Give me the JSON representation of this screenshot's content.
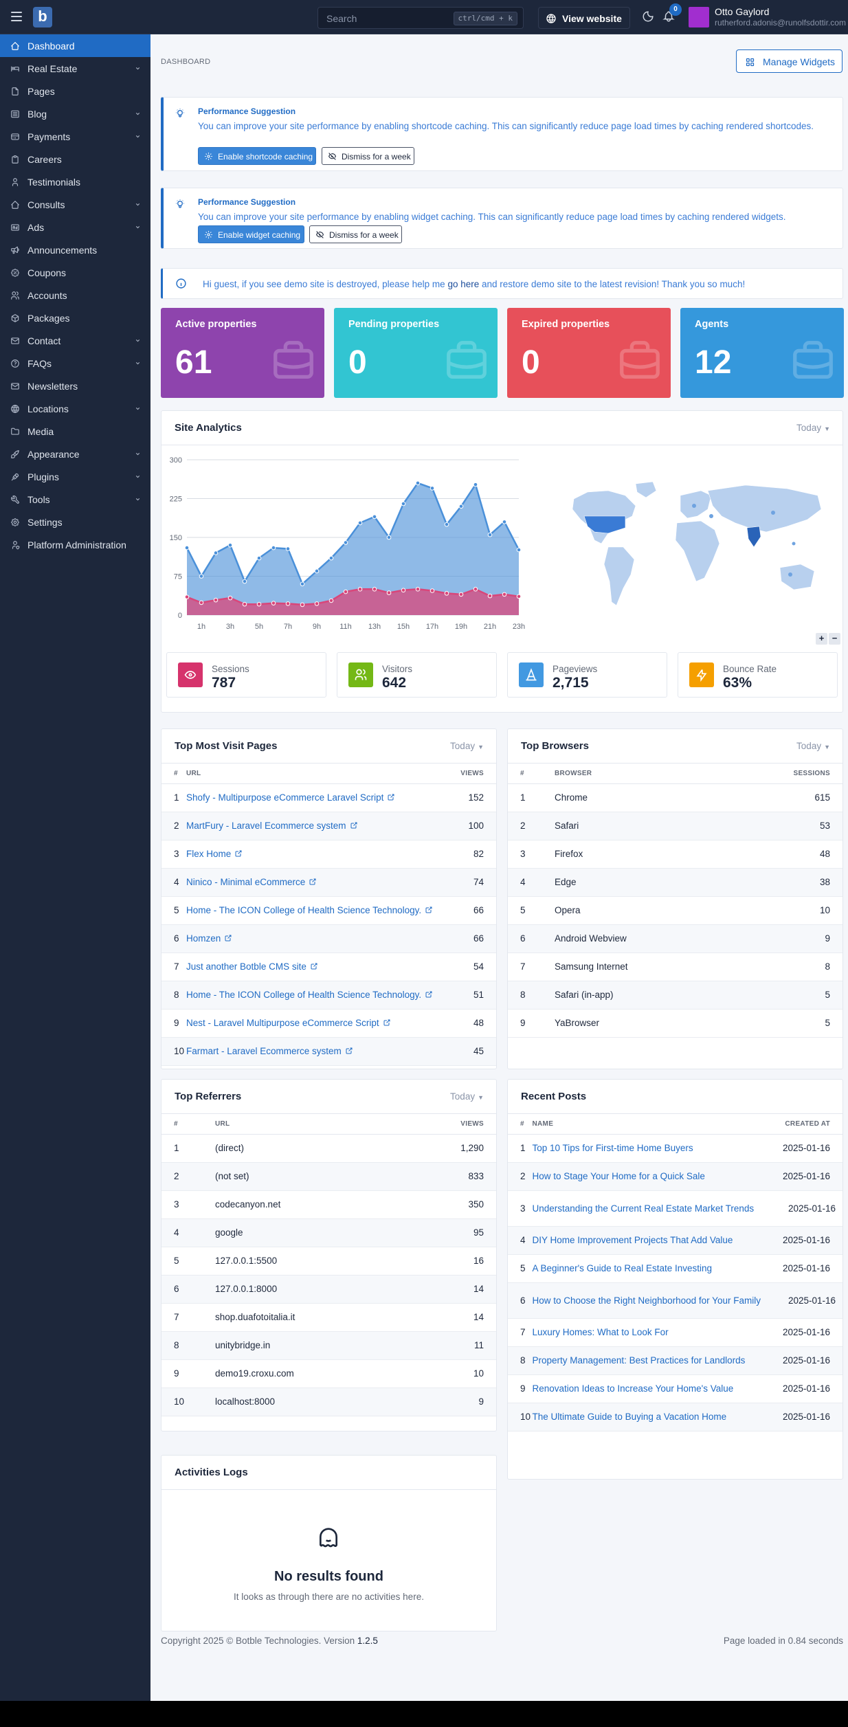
{
  "header": {
    "search_placeholder": "Search",
    "search_shortcut": "ctrl/cmd + k",
    "view_website": "View website",
    "notifications_count": "0",
    "user_name": "Otto Gaylord",
    "user_email": "rutherford.adonis@runolfsdottir.com"
  },
  "sidebar": {
    "items": [
      {
        "label": "Dashboard",
        "icon": "home-icon"
      },
      {
        "label": "Real Estate",
        "icon": "bed-icon"
      },
      {
        "label": "Pages",
        "icon": "file-icon"
      },
      {
        "label": "Blog",
        "icon": "article-icon"
      },
      {
        "label": "Payments",
        "icon": "credit-card-icon"
      },
      {
        "label": "Careers",
        "icon": "clipboard-icon"
      },
      {
        "label": "Testimonials",
        "icon": "user-icon"
      },
      {
        "label": "Consults",
        "icon": "home-icon"
      },
      {
        "label": "Ads",
        "icon": "ad-icon"
      },
      {
        "label": "Announcements",
        "icon": "speakerphone-icon"
      },
      {
        "label": "Coupons",
        "icon": "discount-icon"
      },
      {
        "label": "Accounts",
        "icon": "users-icon"
      },
      {
        "label": "Packages",
        "icon": "package-icon"
      },
      {
        "label": "Contact",
        "icon": "mail-icon"
      },
      {
        "label": "FAQs",
        "icon": "help-icon"
      },
      {
        "label": "Newsletters",
        "icon": "mail-icon"
      },
      {
        "label": "Locations",
        "icon": "world-icon"
      },
      {
        "label": "Media",
        "icon": "folder-icon"
      },
      {
        "label": "Appearance",
        "icon": "brush-icon"
      },
      {
        "label": "Plugins",
        "icon": "plug-icon"
      },
      {
        "label": "Tools",
        "icon": "tool-icon"
      },
      {
        "label": "Settings",
        "icon": "settings-icon"
      },
      {
        "label": "Platform Administration",
        "icon": "user-shield-icon"
      }
    ]
  },
  "page": {
    "breadcrumb": "DASHBOARD",
    "manage_widgets": "Manage Widgets"
  },
  "alerts": [
    {
      "title": "Performance Suggestion",
      "text": "You can improve your site performance by enabling shortcode caching. This can significantly reduce page load times by caching rendered shortcodes.",
      "primary": "Enable shortcode caching",
      "secondary": "Dismiss for a week"
    },
    {
      "title": "Performance Suggestion",
      "text": "You can improve your site performance by enabling widget caching. This can significantly reduce page load times by caching rendered widgets.",
      "primary": "Enable widget caching",
      "secondary": "Dismiss for a week"
    }
  ],
  "notice": {
    "before": "Hi guest, if you see demo site is destroyed, please help me ",
    "link": "go here",
    "after": " and restore demo site to the latest revision! Thank you so much!"
  },
  "stats": [
    {
      "title": "Active properties",
      "value": "61",
      "color": "#8e44ad"
    },
    {
      "title": "Pending properties",
      "value": "0",
      "color": "#32c5d2"
    },
    {
      "title": "Expired properties",
      "value": "0",
      "color": "#e7505a"
    },
    {
      "title": "Agents",
      "value": "12",
      "color": "#3598dc"
    }
  ],
  "analytics": {
    "title": "Site Analytics",
    "filter": "Today",
    "zoom_in": "+",
    "zoom_out": "−",
    "metrics": [
      {
        "label": "Sessions",
        "value": "787",
        "color": "#d6336c"
      },
      {
        "label": "Visitors",
        "value": "642",
        "color": "#74b816"
      },
      {
        "label": "Pageviews",
        "value": "2,715",
        "color": "#4299e1"
      },
      {
        "label": "Bounce Rate",
        "value": "63%",
        "color": "#f59f00"
      }
    ]
  },
  "chart_data": {
    "type": "area",
    "x": [
      "0h",
      "1h",
      "2h",
      "3h",
      "4h",
      "5h",
      "6h",
      "7h",
      "8h",
      "9h",
      "10h",
      "11h",
      "12h",
      "13h",
      "14h",
      "15h",
      "16h",
      "17h",
      "18h",
      "19h",
      "20h",
      "21h",
      "22h",
      "23h"
    ],
    "x_tick_labels": [
      "1h",
      "3h",
      "5h",
      "7h",
      "9h",
      "11h",
      "13h",
      "15h",
      "17h",
      "19h",
      "21h",
      "23h"
    ],
    "y_ticks": [
      "0",
      "75",
      "150",
      "225",
      "300"
    ],
    "ylim": [
      0,
      300
    ],
    "series": [
      {
        "color": "#4a90d9",
        "values": [
          130,
          75,
          120,
          135,
          65,
          110,
          130,
          128,
          60,
          85,
          110,
          140,
          178,
          190,
          150,
          215,
          255,
          245,
          175,
          210,
          252,
          155,
          180,
          126
        ]
      },
      {
        "color": "#d9467a",
        "values": [
          35,
          24,
          29,
          33,
          21,
          21,
          23,
          22,
          20,
          22,
          28,
          45,
          50,
          50,
          43,
          48,
          50,
          47,
          42,
          40,
          50,
          37,
          40,
          36
        ]
      }
    ]
  },
  "top_pages": {
    "title": "Top Most Visit Pages",
    "filter": "Today",
    "cols": [
      "#",
      "URL",
      "VIEWS"
    ],
    "rows": [
      [
        "1",
        "Shofy - Multipurpose eCommerce Laravel Script",
        "152"
      ],
      [
        "2",
        "MartFury - Laravel Ecommerce system",
        "100"
      ],
      [
        "3",
        "Flex Home",
        "82"
      ],
      [
        "4",
        "Ninico - Minimal eCommerce",
        "74"
      ],
      [
        "5",
        "Home - The ICON College of Health Science Technology.",
        "66"
      ],
      [
        "6",
        "Homzen",
        "66"
      ],
      [
        "7",
        "Just another Botble CMS site",
        "54"
      ],
      [
        "8",
        "Home - The ICON College of Health Science Technology.",
        "51"
      ],
      [
        "9",
        "Nest - Laravel Multipurpose eCommerce Script",
        "48"
      ],
      [
        "10",
        "Farmart - Laravel Ecommerce system",
        "45"
      ]
    ]
  },
  "top_browsers": {
    "title": "Top Browsers",
    "filter": "Today",
    "cols": [
      "#",
      "BROWSER",
      "SESSIONS"
    ],
    "rows": [
      [
        "1",
        "Chrome",
        "615"
      ],
      [
        "2",
        "Safari",
        "53"
      ],
      [
        "3",
        "Firefox",
        "48"
      ],
      [
        "4",
        "Edge",
        "38"
      ],
      [
        "5",
        "Opera",
        "10"
      ],
      [
        "6",
        "Android Webview",
        "9"
      ],
      [
        "7",
        "Samsung Internet",
        "8"
      ],
      [
        "8",
        "Safari (in-app)",
        "5"
      ],
      [
        "9",
        "YaBrowser",
        "5"
      ]
    ]
  },
  "top_referrers": {
    "title": "Top Referrers",
    "filter": "Today",
    "cols": [
      "#",
      "URL",
      "VIEWS"
    ],
    "rows": [
      [
        "1",
        "(direct)",
        "1,290"
      ],
      [
        "2",
        "(not set)",
        "833"
      ],
      [
        "3",
        "codecanyon.net",
        "350"
      ],
      [
        "4",
        "google",
        "95"
      ],
      [
        "5",
        "127.0.0.1:5500",
        "16"
      ],
      [
        "6",
        "127.0.0.1:8000",
        "14"
      ],
      [
        "7",
        "shop.duafotoitalia.it",
        "14"
      ],
      [
        "8",
        "unitybridge.in",
        "11"
      ],
      [
        "9",
        "demo19.croxu.com",
        "10"
      ],
      [
        "10",
        "localhost:8000",
        "9"
      ]
    ]
  },
  "recent_posts": {
    "title": "Recent Posts",
    "cols": [
      "#",
      "NAME",
      "CREATED AT"
    ],
    "rows": [
      [
        "1",
        "Top 10 Tips for First-time Home Buyers",
        "2025-01-16"
      ],
      [
        "2",
        "How to Stage Your Home for a Quick Sale",
        "2025-01-16"
      ],
      [
        "3",
        "Understanding the Current Real Estate Market Trends",
        "2025-01-16"
      ],
      [
        "4",
        "DIY Home Improvement Projects That Add Value",
        "2025-01-16"
      ],
      [
        "5",
        "A Beginner's Guide to Real Estate Investing",
        "2025-01-16"
      ],
      [
        "6",
        "How to Choose the Right Neighborhood for Your Family",
        "2025-01-16"
      ],
      [
        "7",
        "Luxury Homes: What to Look For",
        "2025-01-16"
      ],
      [
        "8",
        "Property Management: Best Practices for Landlords",
        "2025-01-16"
      ],
      [
        "9",
        "Renovation Ideas to Increase Your Home's Value",
        "2025-01-16"
      ],
      [
        "10",
        "The Ultimate Guide to Buying a Vacation Home",
        "2025-01-16"
      ]
    ]
  },
  "activities": {
    "title": "Activities Logs",
    "empty_title": "No results found",
    "empty_text": "It looks as through there are no activities here."
  },
  "footer": {
    "copyright": "Copyright 2025 © Botble Technologies. Version ",
    "version": "1.2.5",
    "load_time": "Page loaded in 0.84 seconds"
  }
}
